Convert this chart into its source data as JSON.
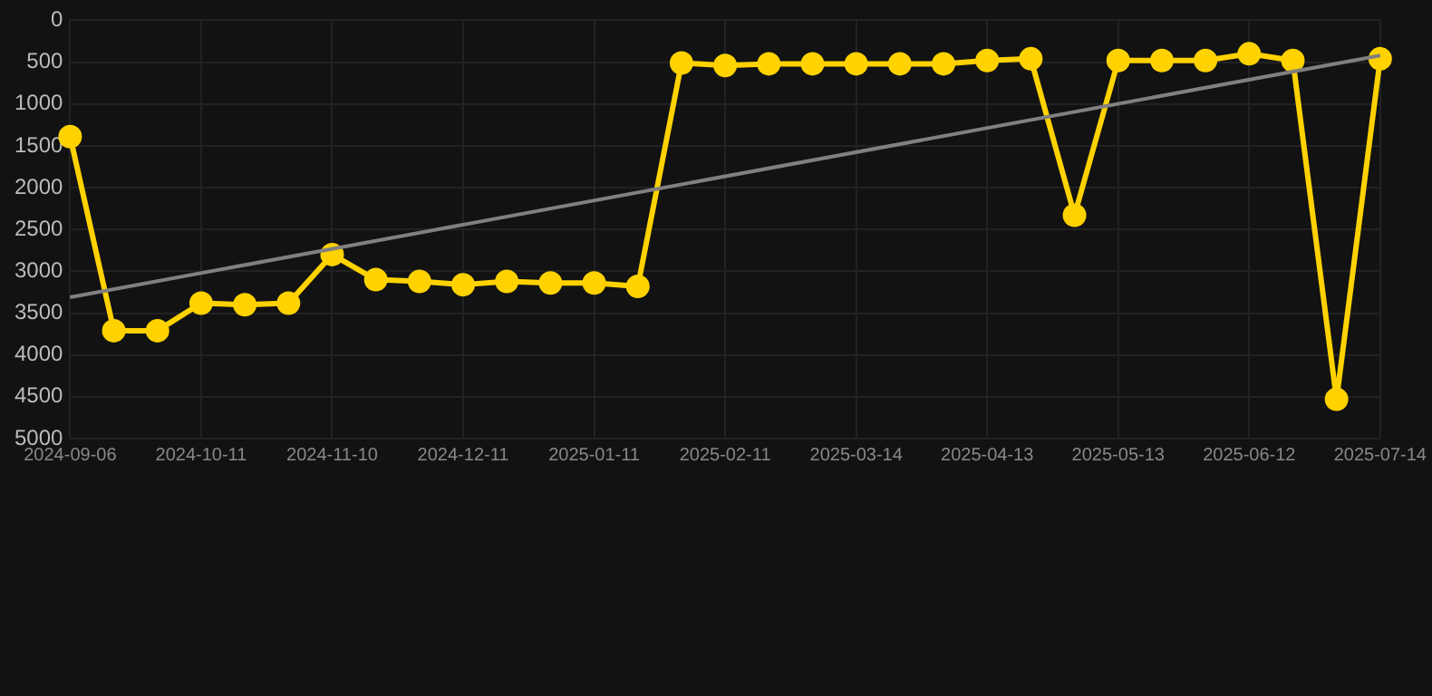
{
  "chart_data": {
    "type": "line",
    "categories": [
      "2024-09-06",
      null,
      null,
      "2024-10-11",
      null,
      null,
      "2024-11-10",
      null,
      null,
      "2024-12-11",
      null,
      null,
      "2025-01-11",
      null,
      null,
      "2025-02-11",
      null,
      null,
      "2025-03-14",
      null,
      null,
      "2025-04-13",
      null,
      null,
      "2025-05-13",
      null,
      null,
      "2025-06-12",
      null,
      null,
      "2025-07-14"
    ],
    "series": [
      {
        "color": "#ffd200",
        "values": [
          1390,
          3710,
          3710,
          3380,
          3400,
          3380,
          2800,
          3100,
          3120,
          3160,
          3120,
          3140,
          3140,
          3180,
          510,
          540,
          520,
          520,
          520,
          520,
          520,
          480,
          460,
          2330,
          480,
          480,
          480,
          400,
          480,
          4530,
          460
        ]
      },
      {
        "type": "line",
        "color": "#808080",
        "marker": "none",
        "values": [
          3310,
          null,
          null,
          null,
          null,
          null,
          null,
          null,
          null,
          null,
          null,
          null,
          null,
          null,
          null,
          null,
          null,
          null,
          null,
          null,
          null,
          null,
          null,
          null,
          null,
          null,
          null,
          null,
          null,
          null,
          420
        ]
      }
    ],
    "ylim": [
      5000,
      0
    ],
    "yticks": [
      0,
      500,
      1000,
      1500,
      2000,
      2500,
      3000,
      3500,
      4000,
      4500,
      5000
    ],
    "grid": true,
    "legend": false,
    "marker": "circle"
  }
}
